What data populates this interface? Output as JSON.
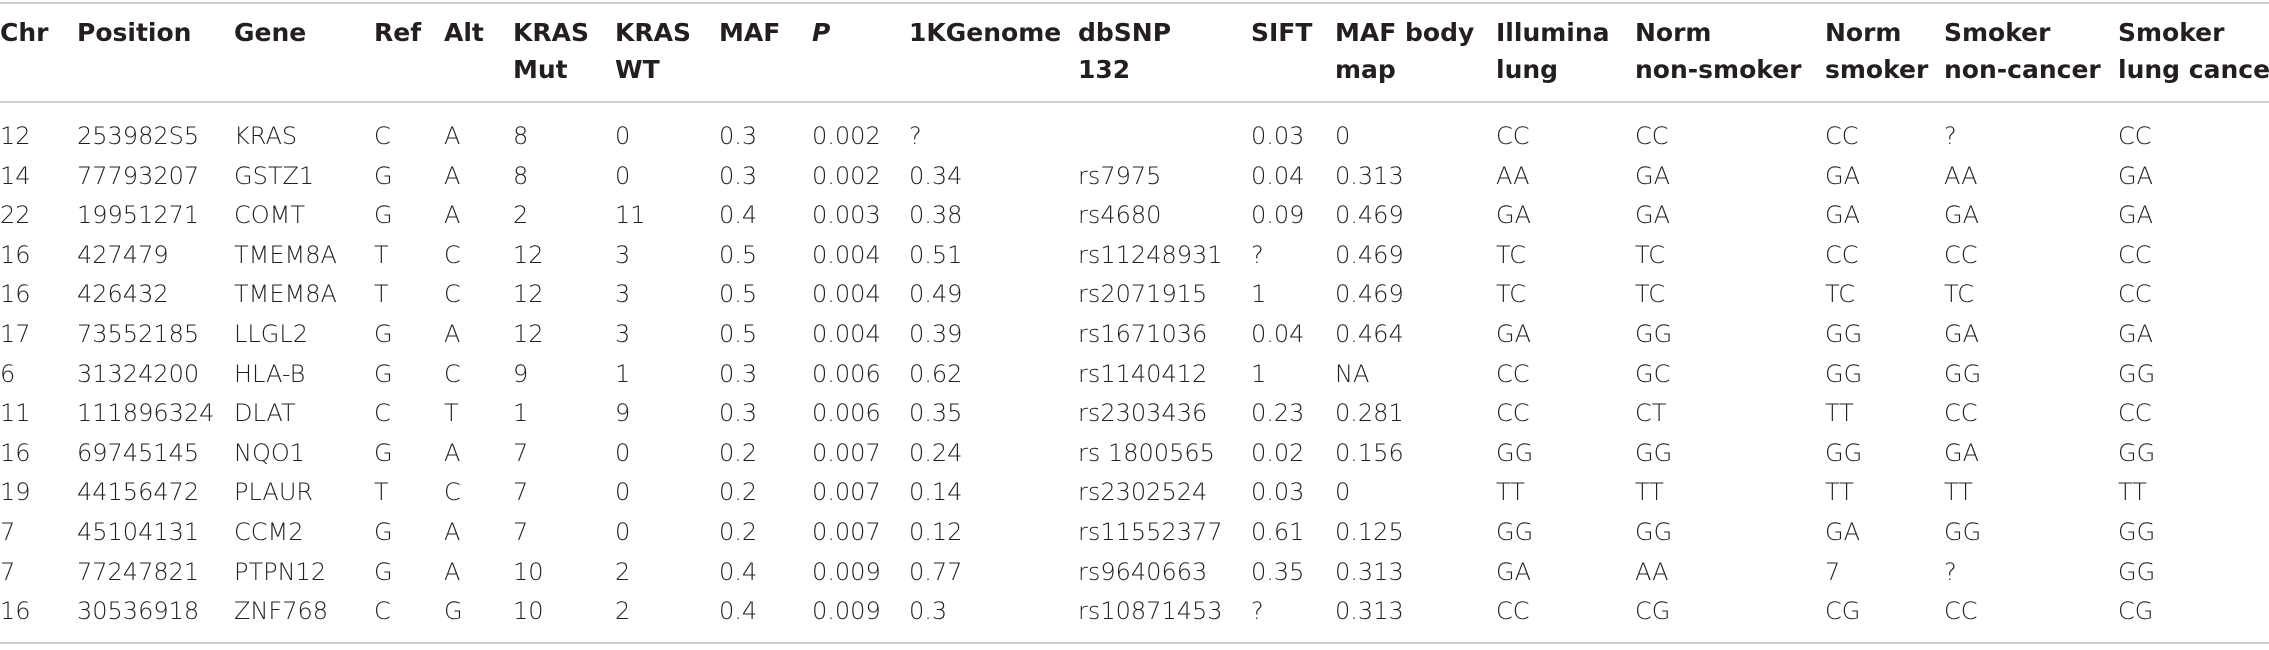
{
  "table": {
    "headers": [
      {
        "line1": "Chr",
        "line2": ""
      },
      {
        "line1": "Position",
        "line2": ""
      },
      {
        "line1": "Gene",
        "line2": ""
      },
      {
        "line1": "Ref",
        "line2": ""
      },
      {
        "line1": "Alt",
        "line2": ""
      },
      {
        "line1": "KRAS",
        "line2": "Mut"
      },
      {
        "line1": "KRAS",
        "line2": "WT"
      },
      {
        "line1": "MAF",
        "line2": ""
      },
      {
        "line1": "P",
        "line2": ""
      },
      {
        "line1": "1KGenome",
        "line2": ""
      },
      {
        "line1": "dbSNP",
        "line2": "132"
      },
      {
        "line1": "SIFT",
        "line2": ""
      },
      {
        "line1": "MAF body",
        "line2": "map"
      },
      {
        "line1": "Illumina",
        "line2": "lung"
      },
      {
        "line1": "Norm",
        "line2": "non-smoker"
      },
      {
        "line1": "Norm",
        "line2": "smoker"
      },
      {
        "line1": "Smoker",
        "line2": "non-cancer"
      },
      {
        "line1": "Smoker",
        "line2": "lung cancer"
      }
    ],
    "rows": [
      [
        "12",
        "253982S5",
        "KRAS",
        "C",
        "A",
        "8",
        "0",
        "0.3",
        "0.002",
        "?",
        "",
        "0.03",
        "0",
        "CC",
        "CC",
        "CC",
        "?",
        "CC"
      ],
      [
        "14",
        "77793207",
        "GSTZ1",
        "G",
        "A",
        "8",
        "0",
        "0.3",
        "0.002",
        "0.34",
        "rs7975",
        "0.04",
        "0.313",
        "AA",
        "GA",
        "GA",
        "AA",
        "GA"
      ],
      [
        "22",
        "19951271",
        "COMT",
        "G",
        "A",
        "2",
        "11",
        "0.4",
        "0.003",
        "0.38",
        "rs4680",
        "0.09",
        "0.469",
        "GA",
        "GA",
        "GA",
        "GA",
        "GA"
      ],
      [
        "16",
        "427479",
        "TMEM8A",
        "T",
        "C",
        "12",
        "3",
        "0.5",
        "0.004",
        "0.51",
        "rs11248931",
        "?",
        "0.469",
        "TC",
        "TC",
        "CC",
        "CC",
        "CC"
      ],
      [
        "16",
        "426432",
        "TMEM8A",
        "T",
        "C",
        "12",
        "3",
        "0.5",
        "0.004",
        "0.49",
        "rs2071915",
        "1",
        "0.469",
        "TC",
        "TC",
        "TC",
        "TC",
        "CC"
      ],
      [
        "17",
        "73552185",
        "LLGL2",
        "G",
        "A",
        "12",
        "3",
        "0.5",
        "0.004",
        "0.39",
        "rs1671036",
        "0.04",
        "0.464",
        "GA",
        "GG",
        "GG",
        "GA",
        "GA"
      ],
      [
        "6",
        "31324200",
        "HLA-B",
        "G",
        "C",
        "9",
        "1",
        "0.3",
        "0.006",
        "0.62",
        "rs1140412",
        "1",
        "NA",
        "CC",
        "GC",
        "GG",
        "GG",
        "GG"
      ],
      [
        "11",
        "111896324",
        "DLAT",
        "C",
        "T",
        "1",
        "9",
        "0.3",
        "0.006",
        "0.35",
        "rs2303436",
        "0.23",
        "0.281",
        "CC",
        "CT",
        "TT",
        "CC",
        "CC"
      ],
      [
        "16",
        "69745145",
        "NQO1",
        "G",
        "A",
        "7",
        "0",
        "0.2",
        "0.007",
        "0.24",
        "rs 1800565",
        "0.02",
        "0.156",
        "GG",
        "GG",
        "GG",
        "GA",
        "GG"
      ],
      [
        "19",
        "44156472",
        "PLAUR",
        "T",
        "C",
        "7",
        "0",
        "0.2",
        "0.007",
        "0.14",
        "rs2302524",
        "0.03",
        "0",
        "TT",
        "TT",
        "TT",
        "TT",
        "TT"
      ],
      [
        "7",
        "45104131",
        "CCM2",
        "G",
        "A",
        "7",
        "0",
        "0.2",
        "0.007",
        "0.12",
        "rs11552377",
        "0.61",
        "0.125",
        "GG",
        "GG",
        "GA",
        "GG",
        "GG"
      ],
      [
        "7",
        "77247821",
        "PTPN12",
        "G",
        "A",
        "10",
        "2",
        "0.4",
        "0.009",
        "0.77",
        "rs9640663",
        "0.35",
        "0.313",
        "GA",
        "AA",
        "7",
        "?",
        "GG"
      ],
      [
        "16",
        "30536918",
        "ZNF768",
        "C",
        "G",
        "10",
        "2",
        "0.4",
        "0.009",
        "0.3",
        "rs10871453",
        "?",
        "0.313",
        "CC",
        "CG",
        "CG",
        "CC",
        "CG"
      ]
    ]
  }
}
